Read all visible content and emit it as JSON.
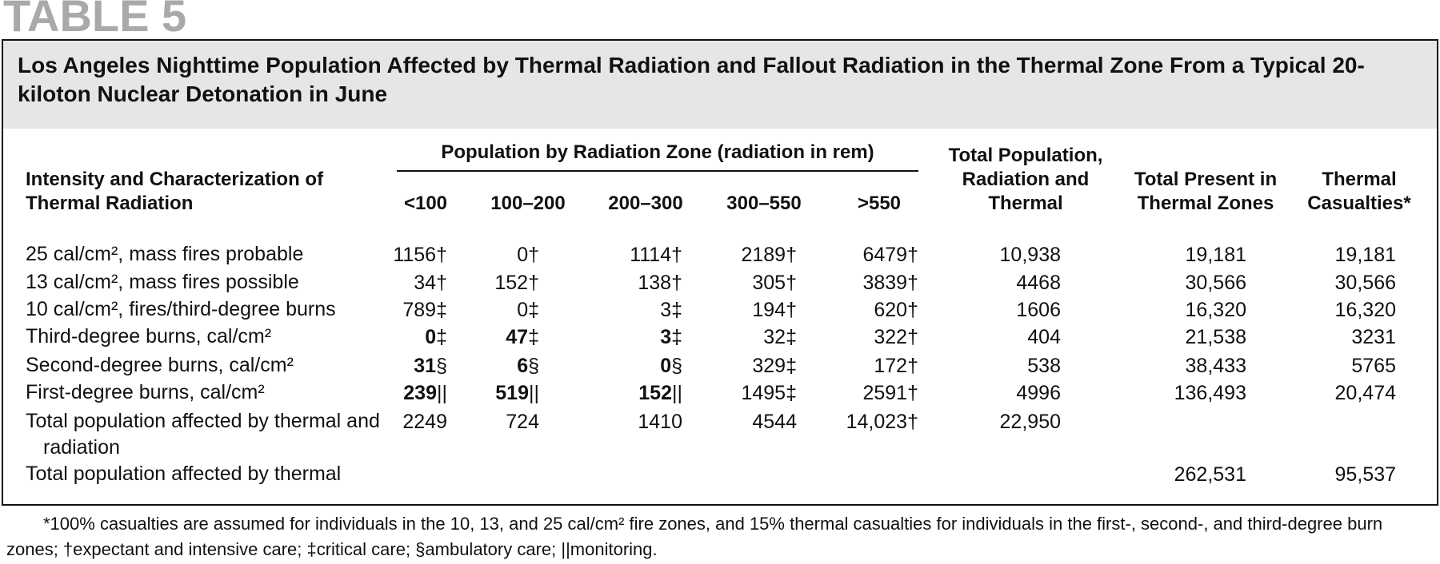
{
  "table_label": "TABLE 5",
  "title": "Los Angeles Nighttime Population Affected by Thermal Radiation and Fallout Radiation in the Thermal Zone From a Typical 20-kiloton Nuclear Detonation in June",
  "table": {
    "header": {
      "row_label": "Intensity and Characterization of Thermal Radiation",
      "group": "Population by Radiation Zone (radiation in rem)",
      "columns": [
        "<100",
        "100–200",
        "200–300",
        "300–550",
        ">550",
        "Total Population, Radiation and Thermal",
        "Total Present in Thermal Zones",
        "Thermal Casualties*"
      ]
    },
    "rows": [
      {
        "label": "25 cal/cm², mass fires probable",
        "cells": [
          "1156†",
          "0†",
          "1114†",
          "2189†",
          "6479†",
          "10,938",
          "19,181",
          "19,181"
        ],
        "bold": []
      },
      {
        "label": "13 cal/cm², mass fires possible",
        "cells": [
          "34†",
          "152†",
          "138†",
          "305†",
          "3839†",
          "4468",
          "30,566",
          "30,566"
        ],
        "bold": []
      },
      {
        "label": "10 cal/cm², fires/third-degree burns",
        "cells": [
          "789‡",
          "0‡",
          "3‡",
          "194†",
          "620†",
          "1606",
          "16,320",
          "16,320"
        ],
        "bold": []
      },
      {
        "label": "Third-degree burns, cal/cm²",
        "cells": [
          "0‡",
          "47‡",
          "3‡",
          "32‡",
          "322†",
          "404",
          "21,538",
          "3231"
        ],
        "bold": [
          0,
          1,
          2
        ]
      },
      {
        "label": "Second-degree burns, cal/cm²",
        "cells": [
          "31§",
          "6§",
          "0§",
          "329‡",
          "172†",
          "538",
          "38,433",
          "5765"
        ],
        "bold": [
          0,
          1,
          2
        ]
      },
      {
        "label": "First-degree burns, cal/cm²",
        "cells": [
          "239||",
          "519||",
          "152||",
          "1495‡",
          "2591†",
          "4996",
          "136,493",
          "20,474"
        ],
        "bold": [
          0,
          1,
          2
        ]
      },
      {
        "label": "Total population affected by thermal and radiation",
        "cells": [
          "2249",
          "724",
          "1410",
          "4544",
          "14,023†",
          "22,950",
          null,
          null
        ],
        "bold": []
      },
      {
        "label": "Total population affected by thermal",
        "cells": [
          null,
          null,
          null,
          null,
          null,
          null,
          "262,531",
          "95,537"
        ],
        "bold": []
      }
    ]
  },
  "footnote": "*100% casualties are assumed for individuals in the 10, 13, and 25 cal/cm² fire zones, and 15% thermal casualties for individuals in the first-, second-, and third-degree burn zones; †expectant and intensive care; ‡critical care; §ambulatory care; ||monitoring."
}
